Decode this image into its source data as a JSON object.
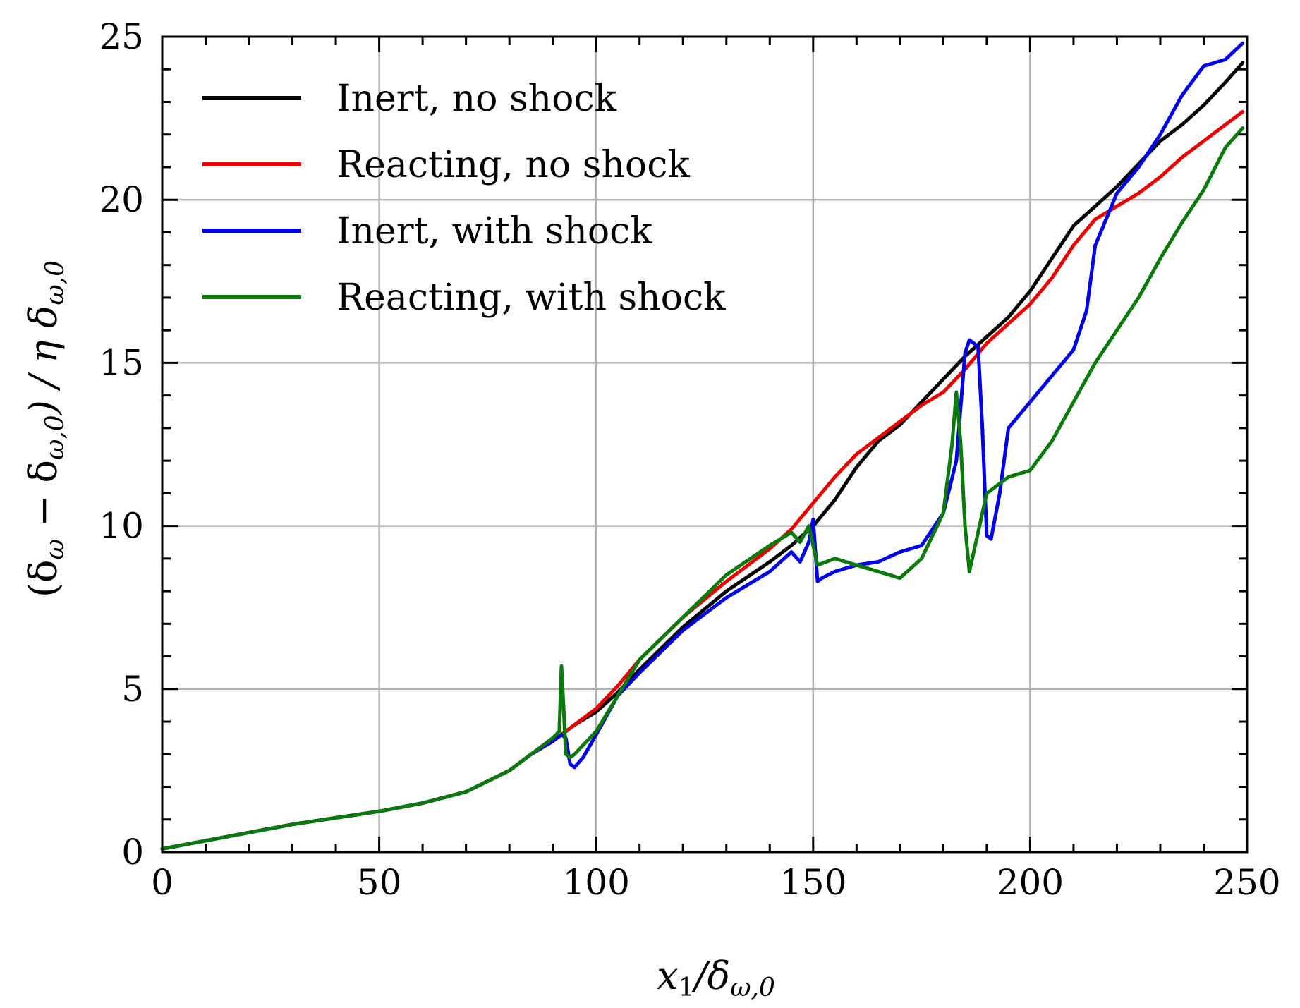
{
  "chart_data": {
    "type": "line",
    "title": "",
    "xlabel": "x₁/δ_ω,0",
    "ylabel": "(δ_ω − δ_ω,0)/η δ_ω,0",
    "xlabel_main": "x",
    "xlabel_sub": "1",
    "xlabel_mid": "/δ",
    "xlabel_sub2": "ω,0",
    "ylabel_p1": "(δ",
    "ylabel_s1": "ω",
    "ylabel_p2": " − δ",
    "ylabel_s2": "ω,0",
    "ylabel_p3": ") / η δ",
    "ylabel_s3": "ω,0",
    "xlim": [
      0,
      250
    ],
    "ylim": [
      0,
      25
    ],
    "xticks": [
      0,
      50,
      100,
      150,
      200,
      250
    ],
    "yticks": [
      0,
      5,
      10,
      15,
      20,
      25
    ],
    "xtick_labels": [
      "0",
      "50",
      "100",
      "150",
      "200",
      "250"
    ],
    "ytick_labels": [
      "0",
      "5",
      "10",
      "15",
      "20",
      "25"
    ],
    "grid": true,
    "legend_position": "top-left",
    "series": [
      {
        "name": "Inert, no shock",
        "color": "#000000",
        "x": [
          0,
          10,
          20,
          30,
          40,
          50,
          60,
          70,
          80,
          85,
          90,
          92,
          95,
          100,
          105,
          110,
          120,
          130,
          140,
          145,
          150,
          155,
          160,
          165,
          170,
          175,
          180,
          185,
          190,
          195,
          200,
          205,
          210,
          215,
          220,
          225,
          230,
          235,
          240,
          245,
          249
        ],
        "y": [
          0.1,
          0.35,
          0.6,
          0.85,
          1.05,
          1.25,
          1.5,
          1.85,
          2.5,
          3.0,
          3.4,
          3.6,
          3.9,
          4.3,
          4.9,
          5.6,
          6.9,
          8.0,
          8.9,
          9.4,
          10.0,
          10.8,
          11.8,
          12.6,
          13.1,
          13.8,
          14.5,
          15.2,
          15.8,
          16.4,
          17.2,
          18.2,
          19.2,
          19.8,
          20.4,
          21.1,
          21.8,
          22.3,
          22.9,
          23.6,
          24.2
        ]
      },
      {
        "name": "Reacting, no shock",
        "color": "#ee0000",
        "x": [
          0,
          10,
          20,
          30,
          40,
          50,
          60,
          70,
          80,
          85,
          90,
          92,
          95,
          100,
          105,
          110,
          120,
          130,
          140,
          145,
          150,
          155,
          160,
          165,
          170,
          175,
          180,
          185,
          190,
          195,
          200,
          205,
          210,
          215,
          220,
          225,
          230,
          235,
          240,
          245,
          249
        ],
        "y": [
          0.1,
          0.35,
          0.6,
          0.85,
          1.05,
          1.25,
          1.5,
          1.85,
          2.5,
          3.0,
          3.4,
          3.6,
          3.9,
          4.4,
          5.1,
          5.9,
          7.2,
          8.3,
          9.3,
          9.9,
          10.7,
          11.5,
          12.2,
          12.7,
          13.2,
          13.7,
          14.1,
          14.8,
          15.6,
          16.2,
          16.8,
          17.6,
          18.6,
          19.4,
          19.8,
          20.2,
          20.7,
          21.3,
          21.8,
          22.3,
          22.7
        ]
      },
      {
        "name": "Inert, with shock",
        "color": "#0000ee",
        "x": [
          0,
          10,
          20,
          30,
          40,
          50,
          60,
          70,
          80,
          85,
          90,
          92,
          93,
          94,
          95,
          97,
          100,
          105,
          110,
          120,
          130,
          140,
          145,
          147,
          149,
          150,
          151,
          152,
          155,
          160,
          165,
          170,
          175,
          180,
          183,
          185,
          186,
          188,
          189,
          190,
          191,
          193,
          195,
          200,
          205,
          210,
          213,
          215,
          220,
          225,
          230,
          235,
          240,
          245,
          249
        ],
        "y": [
          0.1,
          0.35,
          0.6,
          0.85,
          1.05,
          1.25,
          1.5,
          1.85,
          2.5,
          3.0,
          3.4,
          3.6,
          3.5,
          2.7,
          2.6,
          2.9,
          3.6,
          4.8,
          5.5,
          6.8,
          7.8,
          8.6,
          9.2,
          8.9,
          9.5,
          10.2,
          8.3,
          8.4,
          8.6,
          8.8,
          8.9,
          9.2,
          9.4,
          10.4,
          12.0,
          15.3,
          15.7,
          15.5,
          13.0,
          9.7,
          9.6,
          11.0,
          13.0,
          13.8,
          14.6,
          15.4,
          16.6,
          18.6,
          20.2,
          21.0,
          22.0,
          23.2,
          24.1,
          24.3,
          24.8
        ]
      },
      {
        "name": "Reacting, with shock",
        "color": "#0a7a0a",
        "x": [
          0,
          10,
          20,
          30,
          40,
          50,
          60,
          70,
          80,
          85,
          90,
          91.5,
          92,
          92.5,
          93,
          94,
          95,
          100,
          105,
          110,
          120,
          130,
          140,
          145,
          147,
          149,
          150,
          151,
          155,
          160,
          165,
          170,
          175,
          180,
          182,
          183,
          184,
          185,
          186,
          188,
          190,
          195,
          200,
          205,
          210,
          215,
          220,
          225,
          230,
          235,
          240,
          245,
          249
        ],
        "y": [
          0.1,
          0.35,
          0.6,
          0.85,
          1.05,
          1.25,
          1.5,
          1.85,
          2.5,
          3.0,
          3.5,
          3.7,
          5.7,
          4.4,
          3.0,
          2.9,
          3.0,
          3.7,
          4.8,
          5.9,
          7.2,
          8.5,
          9.4,
          9.8,
          9.5,
          10.0,
          9.4,
          8.8,
          9.0,
          8.8,
          8.6,
          8.4,
          9.0,
          10.4,
          12.5,
          14.1,
          12.5,
          10.0,
          8.6,
          9.8,
          11.0,
          11.5,
          11.7,
          12.6,
          13.8,
          15.0,
          16.0,
          17.0,
          18.2,
          19.3,
          20.3,
          21.6,
          22.2
        ]
      }
    ]
  }
}
